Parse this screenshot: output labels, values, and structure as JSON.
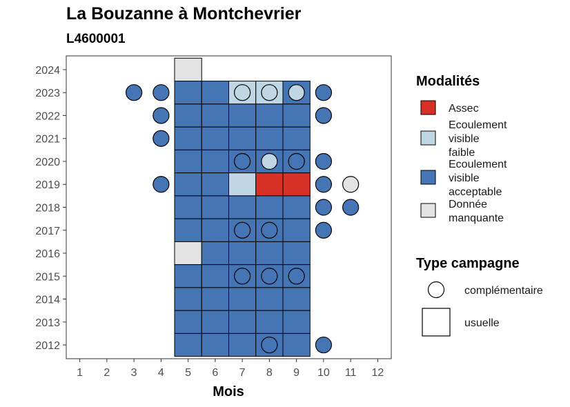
{
  "chart_data": {
    "type": "heatmap",
    "title": "La Bouzanne à Montchevrier",
    "subtitle": "L4600001",
    "xlabel": "Mois",
    "ylabel": "",
    "x_ticks": [
      1,
      2,
      3,
      4,
      5,
      6,
      7,
      8,
      9,
      10,
      11,
      12
    ],
    "y_ticks": [
      2012,
      2013,
      2014,
      2015,
      2016,
      2017,
      2018,
      2019,
      2020,
      2021,
      2022,
      2023,
      2024
    ],
    "xlim": [
      0.5,
      12.5
    ],
    "ylim": [
      2011.4,
      2024.6
    ],
    "grid": false,
    "legend_placement": "right",
    "legend_modalites": {
      "title": "Modalités",
      "entries": [
        {
          "key": "assec",
          "label": [
            "Assec"
          ],
          "color": "#d73027"
        },
        {
          "key": "faible",
          "label": [
            "Ecoulement",
            "visible",
            "faible"
          ],
          "color": "#bfd7e5"
        },
        {
          "key": "acceptable",
          "label": [
            "Ecoulement",
            "visible",
            "acceptable"
          ],
          "color": "#4575b4"
        },
        {
          "key": "manquante",
          "label": [
            "Donnée",
            "manquante"
          ],
          "color": "#e3e3e3"
        }
      ]
    },
    "legend_campagne": {
      "title": "Type campagne",
      "entries": [
        {
          "key": "complementaire",
          "label": "complémentaire",
          "shape": "circle"
        },
        {
          "key": "usuelle",
          "label": "usuelle",
          "shape": "square"
        }
      ]
    },
    "usuelle": [
      {
        "year": 2024,
        "month": 5,
        "mod": "manquante"
      },
      {
        "year": 2023,
        "month": 5,
        "mod": "acceptable"
      },
      {
        "year": 2023,
        "month": 6,
        "mod": "acceptable"
      },
      {
        "year": 2023,
        "month": 7,
        "mod": "faible"
      },
      {
        "year": 2023,
        "month": 8,
        "mod": "faible"
      },
      {
        "year": 2023,
        "month": 9,
        "mod": "acceptable"
      },
      {
        "year": 2022,
        "month": 5,
        "mod": "acceptable"
      },
      {
        "year": 2022,
        "month": 6,
        "mod": "acceptable"
      },
      {
        "year": 2022,
        "month": 7,
        "mod": "acceptable"
      },
      {
        "year": 2022,
        "month": 8,
        "mod": "acceptable"
      },
      {
        "year": 2022,
        "month": 9,
        "mod": "acceptable"
      },
      {
        "year": 2021,
        "month": 5,
        "mod": "acceptable"
      },
      {
        "year": 2021,
        "month": 6,
        "mod": "acceptable"
      },
      {
        "year": 2021,
        "month": 7,
        "mod": "acceptable"
      },
      {
        "year": 2021,
        "month": 8,
        "mod": "acceptable"
      },
      {
        "year": 2021,
        "month": 9,
        "mod": "acceptable"
      },
      {
        "year": 2020,
        "month": 5,
        "mod": "acceptable"
      },
      {
        "year": 2020,
        "month": 6,
        "mod": "acceptable"
      },
      {
        "year": 2020,
        "month": 7,
        "mod": "acceptable"
      },
      {
        "year": 2020,
        "month": 8,
        "mod": "acceptable"
      },
      {
        "year": 2020,
        "month": 9,
        "mod": "acceptable"
      },
      {
        "year": 2019,
        "month": 5,
        "mod": "acceptable"
      },
      {
        "year": 2019,
        "month": 6,
        "mod": "acceptable"
      },
      {
        "year": 2019,
        "month": 7,
        "mod": "faible"
      },
      {
        "year": 2019,
        "month": 8,
        "mod": "assec"
      },
      {
        "year": 2019,
        "month": 9,
        "mod": "assec"
      },
      {
        "year": 2018,
        "month": 5,
        "mod": "acceptable"
      },
      {
        "year": 2018,
        "month": 6,
        "mod": "acceptable"
      },
      {
        "year": 2018,
        "month": 7,
        "mod": "acceptable"
      },
      {
        "year": 2018,
        "month": 8,
        "mod": "acceptable"
      },
      {
        "year": 2018,
        "month": 9,
        "mod": "acceptable"
      },
      {
        "year": 2017,
        "month": 5,
        "mod": "acceptable"
      },
      {
        "year": 2017,
        "month": 6,
        "mod": "acceptable"
      },
      {
        "year": 2017,
        "month": 7,
        "mod": "acceptable"
      },
      {
        "year": 2017,
        "month": 8,
        "mod": "acceptable"
      },
      {
        "year": 2017,
        "month": 9,
        "mod": "acceptable"
      },
      {
        "year": 2016,
        "month": 5,
        "mod": "manquante"
      },
      {
        "year": 2016,
        "month": 6,
        "mod": "acceptable"
      },
      {
        "year": 2016,
        "month": 7,
        "mod": "acceptable"
      },
      {
        "year": 2016,
        "month": 8,
        "mod": "acceptable"
      },
      {
        "year": 2016,
        "month": 9,
        "mod": "acceptable"
      },
      {
        "year": 2015,
        "month": 5,
        "mod": "acceptable"
      },
      {
        "year": 2015,
        "month": 6,
        "mod": "acceptable"
      },
      {
        "year": 2015,
        "month": 7,
        "mod": "acceptable"
      },
      {
        "year": 2015,
        "month": 8,
        "mod": "acceptable"
      },
      {
        "year": 2015,
        "month": 9,
        "mod": "acceptable"
      },
      {
        "year": 2014,
        "month": 5,
        "mod": "acceptable"
      },
      {
        "year": 2014,
        "month": 6,
        "mod": "acceptable"
      },
      {
        "year": 2014,
        "month": 7,
        "mod": "acceptable"
      },
      {
        "year": 2014,
        "month": 8,
        "mod": "acceptable"
      },
      {
        "year": 2014,
        "month": 9,
        "mod": "acceptable"
      },
      {
        "year": 2013,
        "month": 5,
        "mod": "acceptable"
      },
      {
        "year": 2013,
        "month": 6,
        "mod": "acceptable"
      },
      {
        "year": 2013,
        "month": 7,
        "mod": "acceptable"
      },
      {
        "year": 2013,
        "month": 8,
        "mod": "acceptable"
      },
      {
        "year": 2013,
        "month": 9,
        "mod": "acceptable"
      },
      {
        "year": 2012,
        "month": 5,
        "mod": "acceptable"
      },
      {
        "year": 2012,
        "month": 6,
        "mod": "acceptable"
      },
      {
        "year": 2012,
        "month": 7,
        "mod": "acceptable"
      },
      {
        "year": 2012,
        "month": 8,
        "mod": "acceptable"
      },
      {
        "year": 2012,
        "month": 9,
        "mod": "acceptable"
      }
    ],
    "complementaire": [
      {
        "year": 2023,
        "month": 3,
        "mod": "acceptable"
      },
      {
        "year": 2023,
        "month": 4,
        "mod": "acceptable"
      },
      {
        "year": 2023,
        "month": 7,
        "mod": "faible"
      },
      {
        "year": 2023,
        "month": 8,
        "mod": "faible"
      },
      {
        "year": 2023,
        "month": 9,
        "mod": "faible"
      },
      {
        "year": 2023,
        "month": 10,
        "mod": "acceptable"
      },
      {
        "year": 2022,
        "month": 4,
        "mod": "acceptable"
      },
      {
        "year": 2022,
        "month": 10,
        "mod": "acceptable"
      },
      {
        "year": 2021,
        "month": 4,
        "mod": "acceptable"
      },
      {
        "year": 2020,
        "month": 7,
        "mod": "acceptable"
      },
      {
        "year": 2020,
        "month": 8,
        "mod": "faible"
      },
      {
        "year": 2020,
        "month": 9,
        "mod": "acceptable"
      },
      {
        "year": 2020,
        "month": 10,
        "mod": "acceptable"
      },
      {
        "year": 2019,
        "month": 4,
        "mod": "acceptable"
      },
      {
        "year": 2019,
        "month": 10,
        "mod": "acceptable"
      },
      {
        "year": 2019,
        "month": 11,
        "mod": "manquante"
      },
      {
        "year": 2018,
        "month": 10,
        "mod": "acceptable"
      },
      {
        "year": 2018,
        "month": 11,
        "mod": "acceptable"
      },
      {
        "year": 2017,
        "month": 7,
        "mod": "acceptable"
      },
      {
        "year": 2017,
        "month": 8,
        "mod": "acceptable"
      },
      {
        "year": 2017,
        "month": 10,
        "mod": "acceptable"
      },
      {
        "year": 2015,
        "month": 7,
        "mod": "acceptable"
      },
      {
        "year": 2015,
        "month": 8,
        "mod": "acceptable"
      },
      {
        "year": 2015,
        "month": 9,
        "mod": "acceptable"
      },
      {
        "year": 2012,
        "month": 8,
        "mod": "acceptable"
      },
      {
        "year": 2012,
        "month": 10,
        "mod": "acceptable"
      }
    ]
  }
}
